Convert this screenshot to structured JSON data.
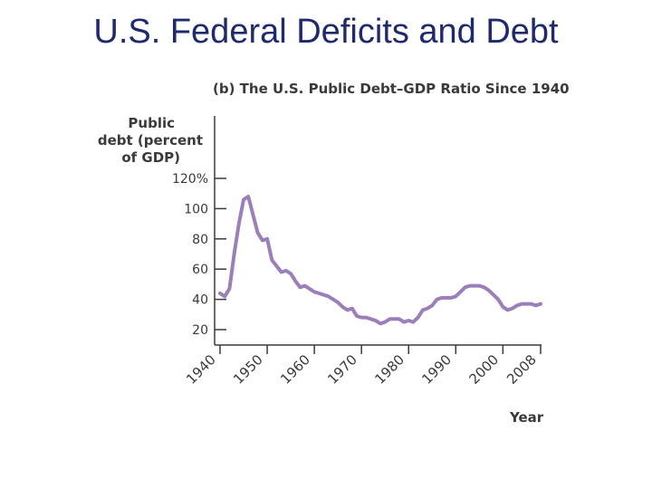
{
  "slide": {
    "title": "U.S. Federal Deficits and Debt"
  },
  "chart_data": {
    "type": "line",
    "title": "(b) The U.S. Public Debt–GDP Ratio Since 1940",
    "ylabel_lines": [
      "Public",
      "debt (percent",
      "of GDP)"
    ],
    "xlabel": "Year",
    "ylim": [
      10,
      125
    ],
    "xlim": [
      1940,
      2008
    ],
    "yticks": [
      {
        "value": 20,
        "label": "20"
      },
      {
        "value": 40,
        "label": "40"
      },
      {
        "value": 60,
        "label": "60"
      },
      {
        "value": 80,
        "label": "80"
      },
      {
        "value": 100,
        "label": "100"
      },
      {
        "value": 120,
        "label": "120%"
      }
    ],
    "xticks": [
      {
        "value": 1940,
        "label": "1940"
      },
      {
        "value": 1950,
        "label": "1950"
      },
      {
        "value": 1960,
        "label": "1960"
      },
      {
        "value": 1970,
        "label": "1970"
      },
      {
        "value": 1980,
        "label": "1980"
      },
      {
        "value": 1990,
        "label": "1990"
      },
      {
        "value": 2000,
        "label": "2000"
      },
      {
        "value": 2008,
        "label": "2008"
      }
    ],
    "grid": false,
    "line_color": "#9b7fb8",
    "series": [
      {
        "x": [
          1940,
          1941,
          1942,
          1943,
          1944,
          1945,
          1946,
          1947,
          1948,
          1949,
          1950,
          1951,
          1952,
          1953,
          1954,
          1955,
          1956,
          1957,
          1958,
          1959,
          1960,
          1961,
          1962,
          1963,
          1964,
          1965,
          1966,
          1967,
          1968,
          1969,
          1970,
          1971,
          1972,
          1973,
          1974,
          1975,
          1976,
          1977,
          1978,
          1979,
          1980,
          1981,
          1982,
          1983,
          1984,
          1985,
          1986,
          1987,
          1988,
          1989,
          1990,
          1991,
          1992,
          1993,
          1994,
          1995,
          1996,
          1997,
          1998,
          1999,
          2000,
          2001,
          2002,
          2003,
          2004,
          2005,
          2006,
          2007,
          2008
        ],
        "values": [
          44,
          42,
          47,
          70,
          90,
          106,
          108,
          96,
          84,
          79,
          80,
          66,
          62,
          58,
          59,
          57,
          52,
          48,
          49,
          47,
          45,
          44,
          43,
          42,
          40,
          38,
          35,
          33,
          34,
          29,
          28,
          28,
          27,
          26,
          24,
          25,
          27,
          27,
          27,
          25,
          26,
          25,
          28,
          33,
          34,
          36,
          40,
          41,
          41,
          41,
          42,
          45,
          48,
          49,
          49,
          49,
          48,
          46,
          43,
          40,
          35,
          33,
          34,
          36,
          37,
          37,
          37,
          36,
          37
        ]
      }
    ]
  }
}
